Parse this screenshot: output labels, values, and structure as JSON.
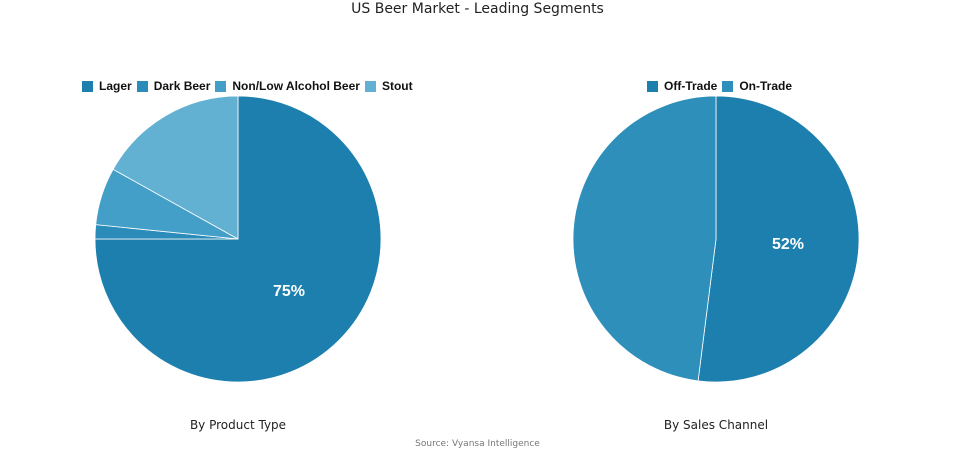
{
  "title": "US Beer Market - Leading Segments",
  "source": "Source: Vyansa Intelligence",
  "chart_data": [
    {
      "type": "pie",
      "title": "By Product Type",
      "categories": [
        "Lager",
        "Dark Beer",
        "Non/Low Alcohol Beer",
        "Stout"
      ],
      "values": [
        75,
        1.6,
        6.5,
        16.9
      ],
      "colors": [
        "#1d7fae",
        "#2b8cba",
        "#449fc8",
        "#62b1d2"
      ],
      "data_labels": [
        "75%",
        "",
        "",
        ""
      ],
      "legend_position": "top"
    },
    {
      "type": "pie",
      "title": "By Sales Channel",
      "categories": [
        "Off-Trade",
        "On-Trade"
      ],
      "values": [
        52,
        48
      ],
      "colors": [
        "#1d7fae",
        "#2f8fbb"
      ],
      "data_labels": [
        "52%",
        ""
      ],
      "legend_position": "top"
    }
  ],
  "left": {
    "legend": [
      {
        "label": "Lager",
        "color": "#1d7fae"
      },
      {
        "label": "Dark Beer",
        "color": "#2b8cba"
      },
      {
        "label": "Non/Low Alcohol Beer",
        "color": "#449fc8"
      },
      {
        "label": "Stout",
        "color": "#62b1d2"
      }
    ],
    "label": "75%",
    "caption": "By Product Type"
  },
  "right": {
    "legend": [
      {
        "label": "Off-Trade",
        "color": "#1d7fae"
      },
      {
        "label": "On-Trade",
        "color": "#2f8fbb"
      }
    ],
    "label": "52%",
    "caption": "By Sales Channel"
  }
}
